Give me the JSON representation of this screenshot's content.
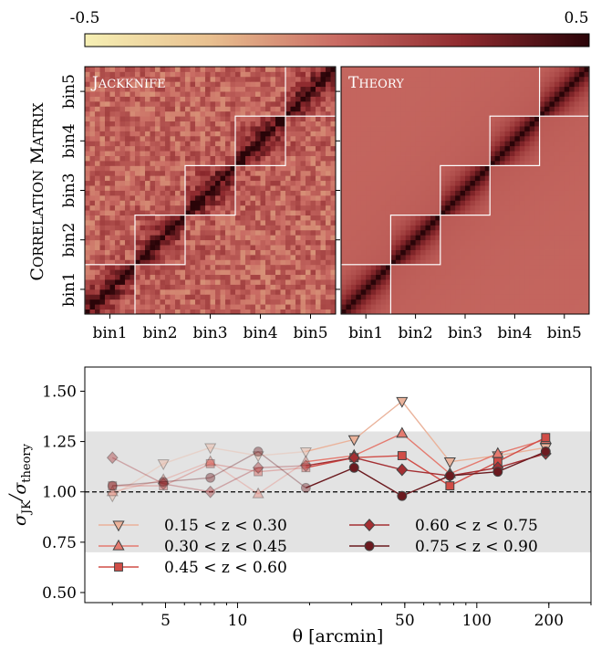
{
  "chart_data": [
    {
      "type": "heatmap",
      "ylabel": "Correlation Matrix",
      "colorbar": {
        "min_label": "-0.5",
        "max_label": "0.5",
        "range": [
          -0.5,
          0.5
        ]
      },
      "bins": [
        "bin1",
        "bin2",
        "bin3",
        "bin4",
        "bin5"
      ],
      "points_per_bin": 10,
      "panels": [
        {
          "title": "Jackknife",
          "noisy": true
        },
        {
          "title": "Theory",
          "noisy": false
        }
      ]
    },
    {
      "type": "scatter",
      "xlabel": "θ [arcmin]",
      "ylabel": "σJK/σtheory",
      "x_scale": "log",
      "xlim": [
        2.3,
        300
      ],
      "ylim": [
        0.45,
        1.62
      ],
      "x_ticks": [
        5,
        10,
        50,
        100,
        200
      ],
      "y_ticks": [
        "0.50",
        "0.75",
        "1.00",
        "1.25",
        "1.50"
      ],
      "shaded_band": [
        0.7,
        1.3
      ],
      "reference_line": 1.0,
      "legend_placement": "lower-left",
      "x": [
        3.0,
        4.9,
        7.7,
        12.2,
        19.3,
        30.7,
        48.7,
        77.2,
        122.4,
        194.0
      ],
      "series": [
        {
          "name": "0.15 < z < 0.30",
          "marker": "triangle-down",
          "color": "#eab29a",
          "values": [
            0.98,
            1.14,
            1.22,
            1.18,
            1.2,
            1.26,
            1.45,
            1.15,
            1.18,
            1.22
          ]
        },
        {
          "name": "0.30 < z < 0.45",
          "marker": "triangle-up",
          "color": "#e47a6f",
          "values": [
            1.0,
            1.06,
            1.15,
            0.99,
            1.15,
            1.18,
            1.29,
            1.09,
            1.19,
            1.26
          ]
        },
        {
          "name": "0.45 < z < 0.60",
          "marker": "square",
          "color": "#d14d47",
          "values": [
            1.03,
            1.03,
            1.14,
            1.1,
            1.12,
            1.17,
            1.18,
            1.03,
            1.15,
            1.27
          ]
        },
        {
          "name": "0.60 < z < 0.75",
          "marker": "diamond",
          "color": "#a42f33",
          "values": [
            1.17,
            1.04,
            1.0,
            1.12,
            1.13,
            1.17,
            1.11,
            1.08,
            1.12,
            1.19
          ]
        },
        {
          "name": "0.75 < z < 0.90",
          "marker": "circle",
          "color": "#6b1a1f",
          "values": [
            1.03,
            1.05,
            1.07,
            1.2,
            1.02,
            1.12,
            0.98,
            1.08,
            1.1,
            1.2
          ]
        }
      ]
    }
  ]
}
